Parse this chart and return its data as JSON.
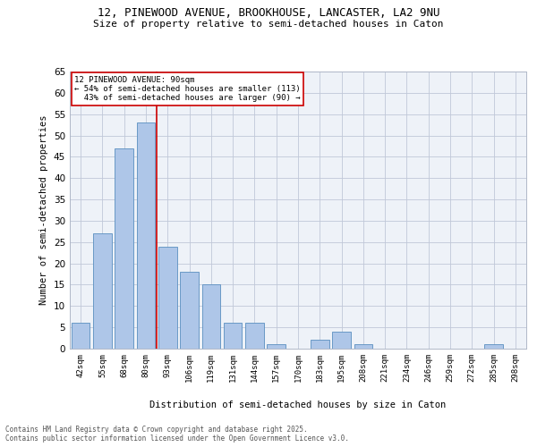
{
  "title1": "12, PINEWOOD AVENUE, BROOKHOUSE, LANCASTER, LA2 9NU",
  "title2": "Size of property relative to semi-detached houses in Caton",
  "xlabel": "Distribution of semi-detached houses by size in Caton",
  "ylabel": "Number of semi-detached properties",
  "categories": [
    "42sqm",
    "55sqm",
    "68sqm",
    "80sqm",
    "93sqm",
    "106sqm",
    "119sqm",
    "131sqm",
    "144sqm",
    "157sqm",
    "170sqm",
    "183sqm",
    "195sqm",
    "208sqm",
    "221sqm",
    "234sqm",
    "246sqm",
    "259sqm",
    "272sqm",
    "285sqm",
    "298sqm"
  ],
  "values": [
    6,
    27,
    47,
    53,
    24,
    18,
    15,
    6,
    6,
    1,
    0,
    2,
    4,
    1,
    0,
    0,
    0,
    0,
    0,
    1,
    0
  ],
  "bar_color": "#aec6e8",
  "bar_edge_color": "#5a8fc0",
  "annotation_box_color": "#cc0000",
  "property_line_label": "12 PINEWOOD AVENUE: 90sqm",
  "pct_smaller": "54%",
  "n_smaller": 113,
  "pct_larger": "43%",
  "n_larger": 90,
  "ylim": [
    0,
    65
  ],
  "yticks": [
    0,
    5,
    10,
    15,
    20,
    25,
    30,
    35,
    40,
    45,
    50,
    55,
    60,
    65
  ],
  "grid_color": "#c0c8d8",
  "bg_color": "#eef2f8",
  "footer_line1": "Contains HM Land Registry data © Crown copyright and database right 2025.",
  "footer_line2": "Contains public sector information licensed under the Open Government Licence v3.0."
}
